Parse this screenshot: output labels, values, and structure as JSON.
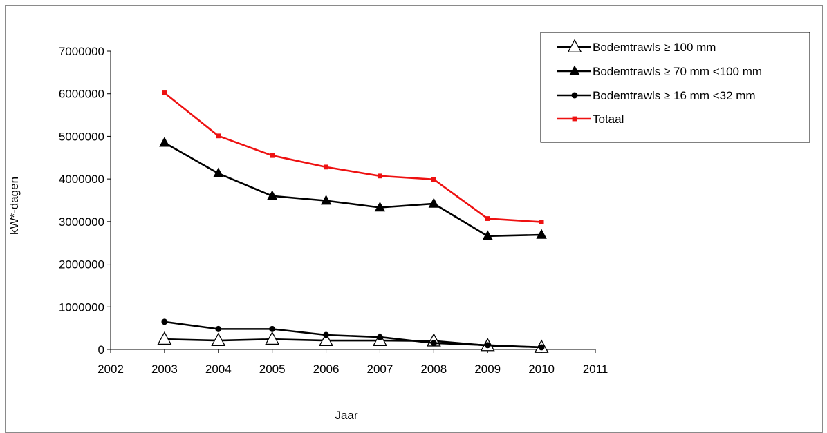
{
  "chart_data": {
    "type": "line",
    "title": "",
    "xlabel": "Jaar",
    "ylabel": "kW*-dagen",
    "xlim": [
      2002,
      2011
    ],
    "ylim": [
      0,
      7000000
    ],
    "x_ticks": [
      "2002",
      "2003",
      "2004",
      "2005",
      "2006",
      "2007",
      "2008",
      "2009",
      "2010",
      "2011"
    ],
    "y_ticks": [
      "0",
      "1000000",
      "2000000",
      "3000000",
      "4000000",
      "5000000",
      "6000000",
      "7000000"
    ],
    "x": [
      2003,
      2004,
      2005,
      2006,
      2007,
      2008,
      2009,
      2010
    ],
    "grid": false,
    "legend_position": "top-right",
    "series": [
      {
        "name": "Bodemtrawls ≥ 100 mm",
        "marker": "open-triangle",
        "color": "#000000",
        "values": [
          240000,
          210000,
          240000,
          210000,
          210000,
          200000,
          90000,
          50000
        ]
      },
      {
        "name": "Bodemtrawls ≥ 70 mm <100 mm",
        "marker": "filled-triangle",
        "color": "#000000",
        "values": [
          4850000,
          4130000,
          3600000,
          3490000,
          3330000,
          3420000,
          2660000,
          2690000
        ]
      },
      {
        "name": "Bodemtrawls ≥ 16 mm <32 mm",
        "marker": "circle",
        "color": "#000000",
        "values": [
          650000,
          480000,
          480000,
          340000,
          290000,
          150000,
          100000,
          50000
        ]
      },
      {
        "name": "Totaal",
        "marker": "square",
        "color": "#ee1111",
        "values": [
          6020000,
          5010000,
          4550000,
          4280000,
          4070000,
          3990000,
          3070000,
          2990000
        ]
      }
    ]
  }
}
